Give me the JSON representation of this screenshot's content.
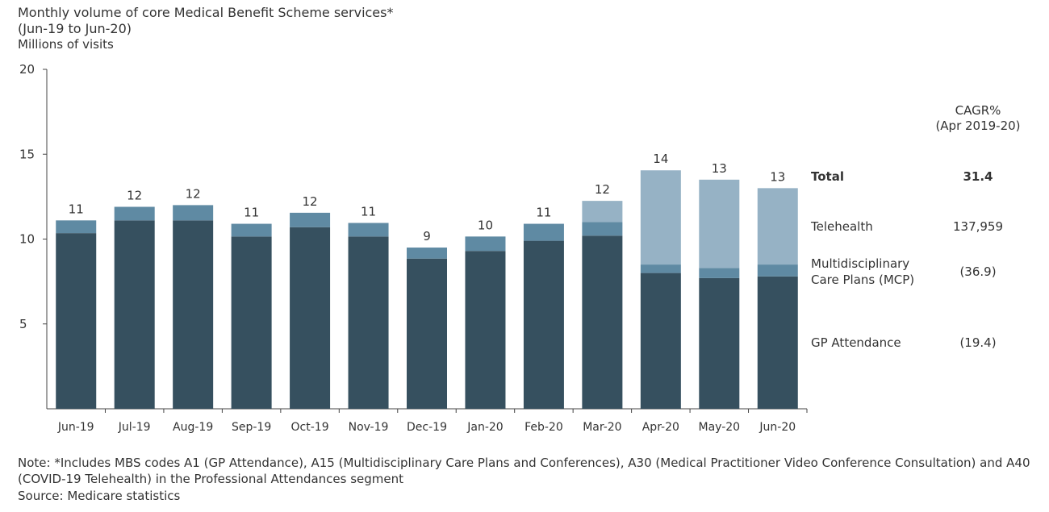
{
  "chart_data": {
    "type": "bar",
    "stacked": true,
    "title": "Monthly volume of core Medical Benefit Scheme services*",
    "subtitle": "(Jun-19 to Jun-20)",
    "ylabel": "Millions of visits",
    "ylim": [
      0,
      20
    ],
    "yticks": [
      5,
      10,
      15,
      20
    ],
    "grid": false,
    "categories": [
      "Jun-19",
      "Jul-19",
      "Aug-19",
      "Sep-19",
      "Oct-19",
      "Nov-19",
      "Dec-19",
      "Jan-20",
      "Feb-20",
      "Mar-20",
      "Apr-20",
      "May-20",
      "Jun-20"
    ],
    "series": [
      {
        "name": "GP Attendance",
        "color": "#36505f",
        "values": [
          10.35,
          11.1,
          11.1,
          10.15,
          10.7,
          10.15,
          8.85,
          9.3,
          9.9,
          10.2,
          8.0,
          7.7,
          7.8
        ]
      },
      {
        "name": "Multidisciplinary Care Plans (MCP)",
        "color": "#5f8aa3",
        "values": [
          0.75,
          0.8,
          0.9,
          0.75,
          0.85,
          0.8,
          0.65,
          0.85,
          1.0,
          0.8,
          0.5,
          0.6,
          0.7
        ]
      },
      {
        "name": "Telehealth",
        "color": "#96b2c5",
        "values": [
          0,
          0,
          0,
          0,
          0,
          0,
          0,
          0,
          0,
          1.25,
          5.55,
          5.2,
          4.5
        ]
      }
    ],
    "total_labels": [
      "11",
      "12",
      "12",
      "11",
      "12",
      "11",
      "9",
      "10",
      "11",
      "12",
      "14",
      "13",
      "13"
    ],
    "legend": {
      "header_line1": "CAGR%",
      "header_line2": "(Apr 2019-20)",
      "rows": [
        {
          "label": "Total",
          "value": "31.4",
          "bold": true
        },
        {
          "label": "Telehealth",
          "value": "137,959"
        },
        {
          "label_line1": "Multidisciplinary",
          "label_line2": "Care Plans (MCP)",
          "value": "(36.9)"
        },
        {
          "label": "GP Attendance",
          "value": "(19.4)"
        }
      ],
      "placement": "right"
    }
  },
  "notes": {
    "line1": "Note: *Includes MBS codes A1 (GP Attendance), A15 (Multidisciplinary Care Plans and Conferences), A30 (Medical Practitioner Video Conference Consultation) and A40",
    "line2": "(COVID-19 Telehealth) in the Professional Attendances segment",
    "source": "Source: Medicare statistics"
  }
}
